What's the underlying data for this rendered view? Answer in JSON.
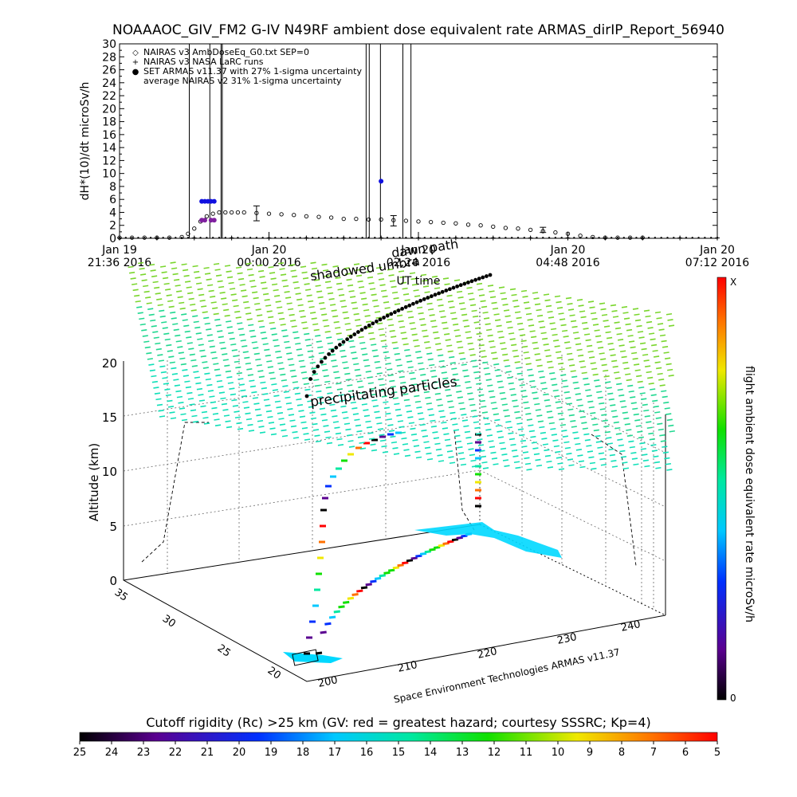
{
  "title": "NOAAAOC_GIV_FM2 G-IV   N49RF  ambient dose equivalent rate ARMAS_dirIP_Report_56940",
  "chart_data": [
    {
      "type": "line",
      "ylabel": "dH*(10)/dt microSv/h",
      "xlabel": "UT time",
      "ylim": [
        0,
        30
      ],
      "yticks": [
        0,
        2,
        4,
        6,
        8,
        10,
        12,
        14,
        16,
        18,
        20,
        22,
        24,
        26,
        28,
        30
      ],
      "xlim_hours": [
        -2.4,
        7.2
      ],
      "xticks": [
        {
          "h": -2.4,
          "line1": "Jan 19",
          "line2": "21:36 2016"
        },
        {
          "h": 0.0,
          "line1": "Jan 20",
          "line2": "00:00 2016"
        },
        {
          "h": 2.4,
          "line1": "Jan 20",
          "line2": "02:24 2016"
        },
        {
          "h": 4.8,
          "line1": "Jan 20",
          "line2": "04:48 2016"
        },
        {
          "h": 7.2,
          "line1": "Jan 20",
          "line2": "07:12 2016"
        }
      ],
      "legend": [
        {
          "symbol": "◇",
          "label": "NAIRAS v3 AmbDoseEq_G0.txt SEP=0"
        },
        {
          "symbol": "+",
          "label": "NAIRAS v3 NASA LaRC runs"
        },
        {
          "symbol": "●",
          "label": "SET ARMAS v11.37 with 27% 1-sigma uncertainty"
        },
        {
          "symbol": "",
          "label": "average NAIRAS v2 31% 1-sigma uncertainty"
        }
      ],
      "series": [
        {
          "name": "NAIRAS v3 AmbDoseEq_G0.txt SEP=0",
          "color": "#000000",
          "x": [
            -2.4,
            -2.2,
            -2.0,
            -1.8,
            -1.6,
            -1.4,
            -1.3,
            -1.2,
            -1.1,
            -1.0,
            -0.9,
            -0.8,
            -0.7,
            -0.6,
            -0.5,
            -0.4,
            -0.2,
            0.0,
            0.2,
            0.4,
            0.6,
            0.8,
            1.0,
            1.2,
            1.4,
            1.6,
            1.8,
            2.0,
            2.2,
            2.4,
            2.6,
            2.8,
            3.0,
            3.2,
            3.4,
            3.6,
            3.8,
            4.0,
            4.2,
            4.4,
            4.6,
            4.8,
            5.0,
            5.2,
            5.4,
            5.6,
            5.8,
            6.0
          ],
          "y": [
            0.1,
            0.1,
            0.1,
            0.1,
            0.1,
            0.2,
            0.7,
            1.5,
            2.6,
            3.4,
            3.8,
            4.0,
            4.0,
            4.0,
            4.0,
            4.0,
            3.9,
            3.8,
            3.7,
            3.6,
            3.4,
            3.3,
            3.2,
            3.0,
            3.0,
            2.9,
            2.9,
            2.8,
            2.7,
            2.6,
            2.5,
            2.4,
            2.3,
            2.1,
            2.0,
            1.8,
            1.6,
            1.5,
            1.3,
            1.1,
            0.9,
            0.7,
            0.4,
            0.2,
            0.1,
            0.1,
            0.1,
            0.1
          ]
        },
        {
          "name": "NAIRAS v3 NASA LaRC runs",
          "color": "#000000",
          "x": [
            -2.4,
            -1.8,
            -1.2,
            -0.6,
            0.0,
            0.6,
            1.2,
            1.8,
            2.4,
            3.0,
            3.6,
            4.2,
            4.8,
            5.4,
            6.0,
            6.6,
            7.2
          ],
          "y": [
            0.05,
            0.05,
            0.05,
            0.05,
            0.05,
            0.05,
            0.05,
            0.05,
            0.05,
            0.05,
            0.05,
            0.05,
            0.05,
            0.05,
            0.05,
            0.05,
            0.05
          ]
        },
        {
          "name": "SET ARMAS v11.37 with 27% 1-sigma uncertainty",
          "color": "#1010e0",
          "x": [
            -1.08,
            -1.03,
            -0.98,
            -0.93,
            -0.88,
            1.8
          ],
          "y": [
            5.7,
            5.7,
            5.7,
            5.7,
            5.7,
            8.8
          ]
        }
      ],
      "armas_lower_marks": {
        "color": "#8020a0",
        "x": [
          -1.08,
          -1.03,
          -0.93,
          -0.88
        ],
        "y": [
          2.8,
          2.8,
          2.8,
          2.8
        ]
      },
      "error_bars": [
        {
          "x": -0.2,
          "y": 3.8,
          "lo": 2.7,
          "hi": 5.0
        },
        {
          "x": 2.0,
          "y": 2.7,
          "lo": 1.9,
          "hi": 3.5
        },
        {
          "x": 4.4,
          "y": 1.3,
          "lo": 0.9,
          "hi": 1.7
        }
      ],
      "vertical_lines_h": [
        -1.28,
        -0.95,
        -0.77,
        -0.75,
        1.56,
        1.61,
        1.79,
        2.15,
        2.28
      ]
    },
    {
      "type": "scatter",
      "subtype": "3d-flight-track",
      "zlabel": "Altitude (km)",
      "zticks": [
        0,
        5,
        10,
        15,
        20
      ],
      "lat_ticks": [
        20,
        25,
        30,
        35
      ],
      "lon_ticks": [
        200,
        210,
        220,
        230,
        240
      ],
      "axis_caption": "Space Environment Technologies ARMAS v11.37",
      "annotations": [
        "shadowed umbra",
        "dawn path",
        "precipitating particles"
      ],
      "colorbar": {
        "label": "flight ambient dose equivalent rate microSv/h",
        "top": "X",
        "bottom": "0"
      }
    },
    {
      "type": "heatmap",
      "subtype": "colorbar",
      "title": "Cutoff rigidity (Rc) >25 km (GV: red = greatest hazard; courtesy SSSRC; Kp=4)",
      "ticks": [
        25,
        24,
        23,
        22,
        21,
        20,
        19,
        18,
        17,
        16,
        15,
        14,
        13,
        12,
        11,
        10,
        9,
        8,
        7,
        6,
        5
      ]
    }
  ]
}
